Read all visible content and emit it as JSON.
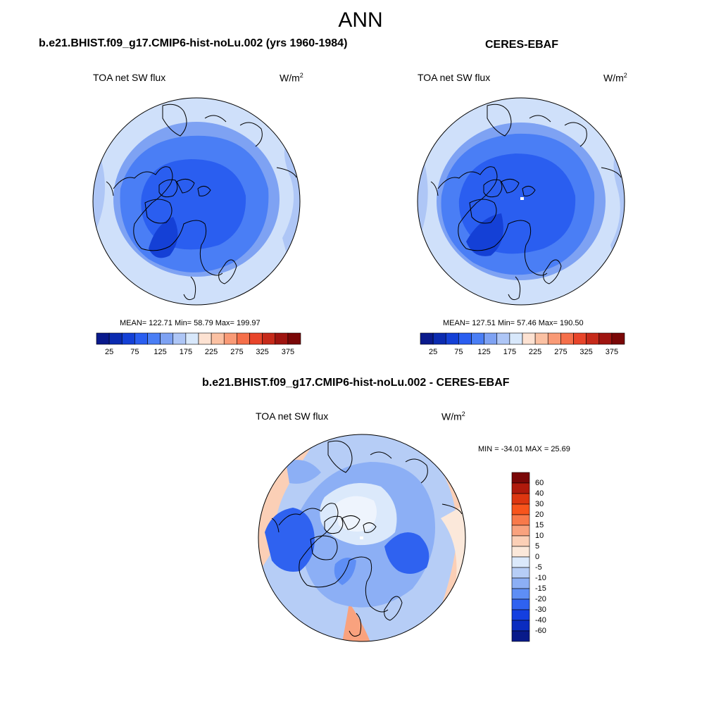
{
  "main_title": "ANN",
  "panels": [
    {
      "case_title": "b.e21.BHIST.f09_g17.CMIP6-hist-noLu.002 (yrs 1960-1984)",
      "variable": "TOA net SW flux",
      "units": "W/m",
      "units_sup": "2",
      "stats": "MEAN= 122.71  Min=  58.79  Max= 199.97"
    },
    {
      "case_title": "CERES-EBAF",
      "variable": "TOA net SW flux",
      "units": "W/m",
      "units_sup": "2",
      "stats": "MEAN= 127.51  Min=  57.46  Max= 190.50"
    }
  ],
  "colorbar_h": {
    "colors": [
      "#0a1a8c",
      "#0b2bb0",
      "#1440d6",
      "#2a5ef0",
      "#4a7ef5",
      "#7ea2f3",
      "#aec6f6",
      "#d8e8fb",
      "#fde2d2",
      "#fbc1a3",
      "#f99a76",
      "#f56f4a",
      "#e8452a",
      "#c62a1a",
      "#9f1410",
      "#7a0707"
    ],
    "ticks": [
      "25",
      "75",
      "125",
      "175",
      "225",
      "275",
      "325",
      "375"
    ]
  },
  "diff_panel": {
    "case_title": "b.e21.BHIST.f09_g17.CMIP6-hist-noLu.002 - CERES-EBAF",
    "variable": "TOA net SW flux",
    "units": "W/m",
    "units_sup": "2",
    "stats": "MIN = -34.01 MAX =  25.69"
  },
  "colorbar_v": {
    "colors": [
      "#7a0707",
      "#b01a0c",
      "#dd3610",
      "#f7541c",
      "#f8794a",
      "#f9a27e",
      "#fbcfb6",
      "#fbe8da",
      "#dbe9fb",
      "#b6cdf6",
      "#8caff5",
      "#5e8ef5",
      "#2f62f0",
      "#143fe0",
      "#0a2cc0",
      "#081a8a"
    ],
    "ticks": [
      "60",
      "40",
      "30",
      "20",
      "15",
      "10",
      "5",
      "0",
      "-5",
      "-10",
      "-15",
      "-20",
      "-30",
      "-40",
      "-60"
    ]
  },
  "chart_data": [
    {
      "type": "heatmap",
      "title": "b.e21.BHIST.f09_g17.CMIP6-hist-noLu.002 (yrs 1960-1984)",
      "variable": "TOA net SW flux",
      "units": "W/m2",
      "mean": 122.71,
      "min": 58.79,
      "max": 199.97,
      "levels": [
        25,
        75,
        125,
        175,
        225,
        275,
        325,
        375
      ],
      "projection": "north polar stereographic"
    },
    {
      "type": "heatmap",
      "title": "CERES-EBAF",
      "variable": "TOA net SW flux",
      "units": "W/m2",
      "mean": 127.51,
      "min": 57.46,
      "max": 190.5,
      "levels": [
        25,
        75,
        125,
        175,
        225,
        275,
        325,
        375
      ],
      "projection": "north polar stereographic"
    },
    {
      "type": "heatmap",
      "title": "b.e21.BHIST.f09_g17.CMIP6-hist-noLu.002 - CERES-EBAF",
      "variable": "TOA net SW flux",
      "units": "W/m2",
      "min": -34.01,
      "max": 25.69,
      "levels": [
        -60,
        -40,
        -30,
        -20,
        -15,
        -10,
        -5,
        0,
        5,
        10,
        15,
        20,
        30,
        40,
        60
      ],
      "projection": "north polar stereographic"
    }
  ]
}
